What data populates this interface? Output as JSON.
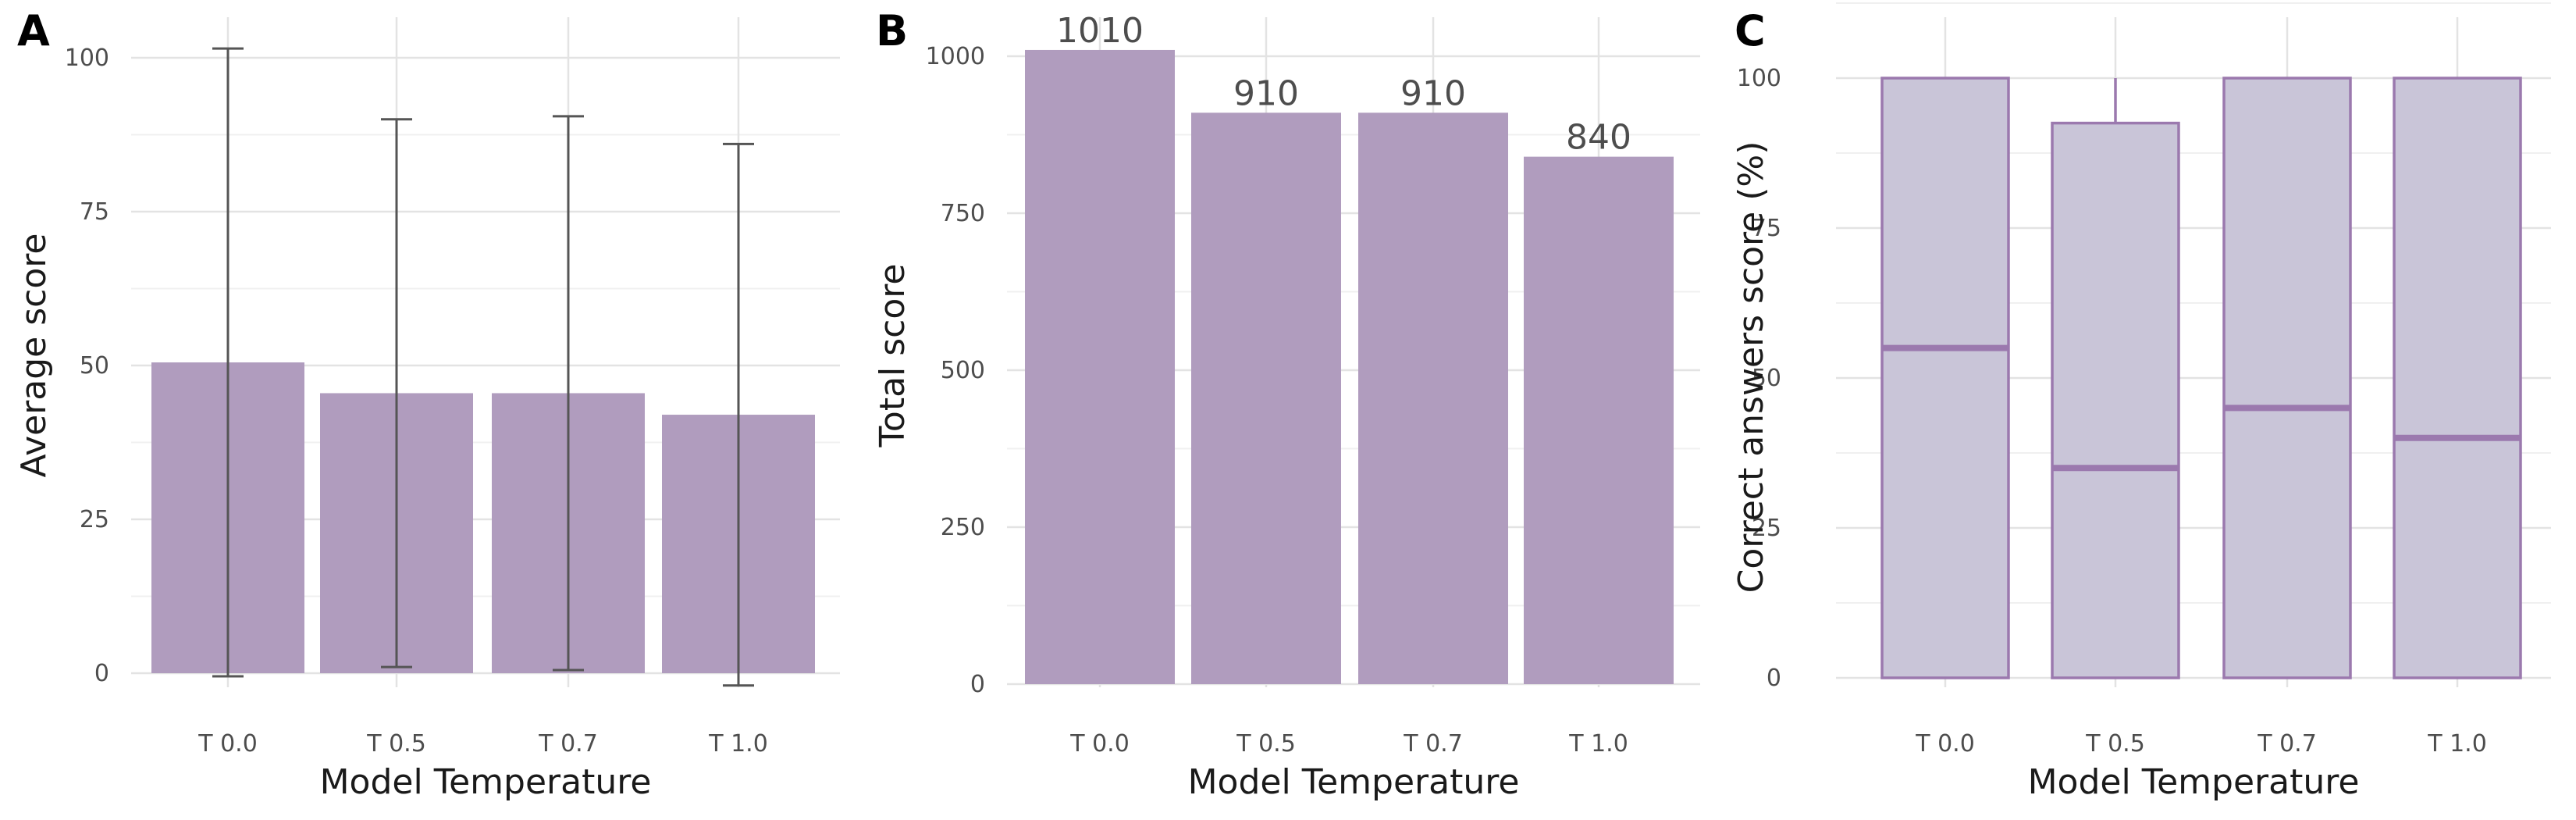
{
  "colors": {
    "bar_fill": "#b09cbe",
    "box_fill": "#c9c5d8",
    "box_stroke": "#9b79ae",
    "error_bar": "#555555",
    "grid_major": "#e3e3e3",
    "grid_minor": "#f0f0f0",
    "tick_text": "#4d4d4d",
    "title_text": "#1a1a1a"
  },
  "chart_data": [
    {
      "panel": "A",
      "type": "bar",
      "categories": [
        "T 0.0",
        "T 0.5",
        "T 0.7",
        "T 1.0"
      ],
      "values": [
        50.5,
        45.5,
        45.5,
        42
      ],
      "error_low": [
        -0.5,
        1,
        0.5,
        -2
      ],
      "error_high": [
        101.5,
        90,
        90.5,
        86
      ],
      "xlabel": "Model Temperature",
      "ylabel": "Average score",
      "ylim": [
        -2,
        106
      ],
      "yticks": [
        0,
        25,
        50,
        75,
        100
      ],
      "grid": true
    },
    {
      "panel": "B",
      "type": "bar",
      "categories": [
        "T 0.0",
        "T 0.5",
        "T 0.7",
        "T 1.0"
      ],
      "values": [
        1010,
        910,
        910,
        840
      ],
      "data_labels": [
        "1010",
        "910",
        "910",
        "840"
      ],
      "xlabel": "Model Temperature",
      "ylabel": "Total score",
      "ylim": [
        0,
        1030
      ],
      "yticks": [
        0,
        250,
        500,
        750,
        1000
      ],
      "grid": true
    },
    {
      "panel": "C",
      "type": "box",
      "categories": [
        "T 0.0",
        "T 0.5",
        "T 0.7",
        "T 1.0"
      ],
      "boxes": [
        {
          "q1": 0,
          "median": 55,
          "q3": 100,
          "whisker_low": 0,
          "whisker_high": 100
        },
        {
          "q1": 0,
          "median": 35,
          "q3": 92.5,
          "whisker_low": 0,
          "whisker_high": 100
        },
        {
          "q1": 0,
          "median": 45,
          "q3": 100,
          "whisker_low": 0,
          "whisker_high": 100
        },
        {
          "q1": 0,
          "median": 40,
          "q3": 100,
          "whisker_low": 0,
          "whisker_high": 100
        }
      ],
      "xlabel": "Model Temperature",
      "ylabel": "Correct answers score (%)",
      "ylim": [
        0,
        100
      ],
      "yticks": [
        0,
        25,
        50,
        75,
        100
      ],
      "grid": true
    }
  ]
}
